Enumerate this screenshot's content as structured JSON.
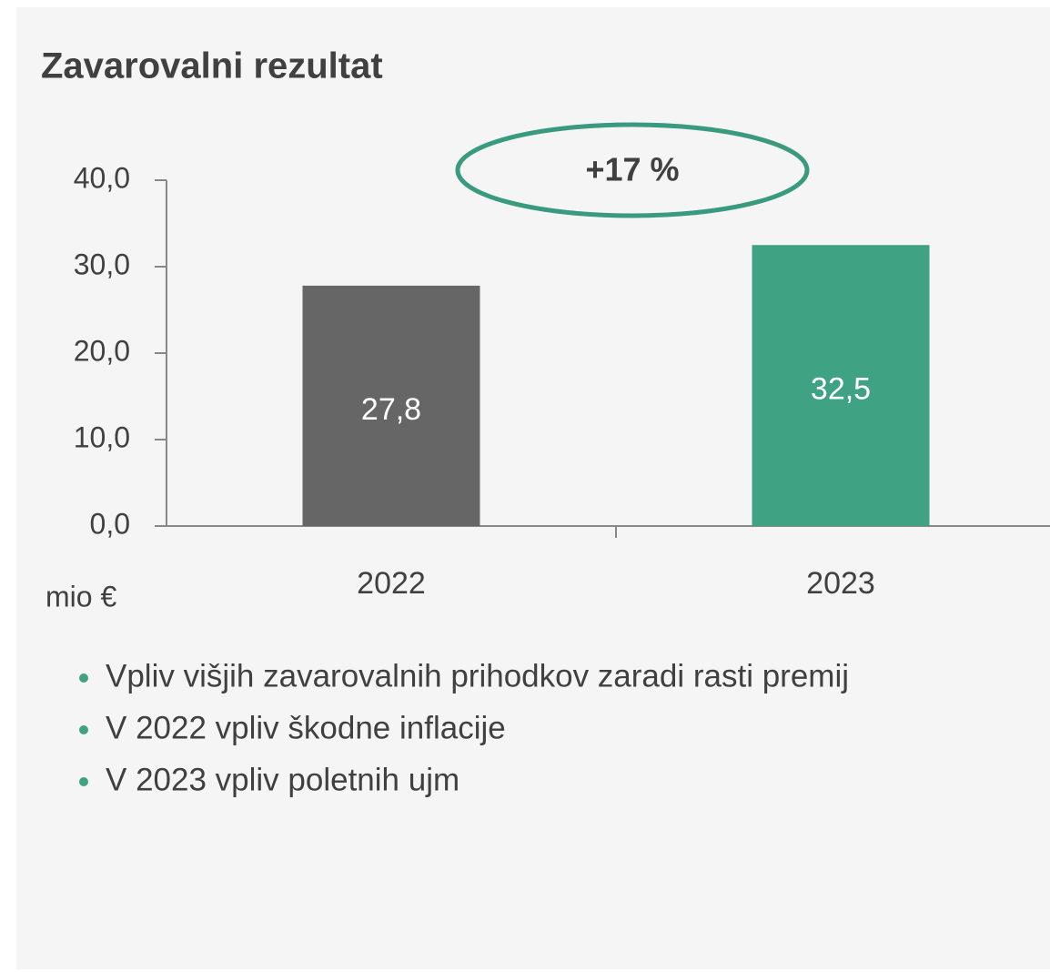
{
  "chart_data": {
    "type": "bar",
    "title": "Zavarovalni rezultat",
    "categories": [
      "2022",
      "2023"
    ],
    "values": [
      27.8,
      32.5
    ],
    "value_labels": [
      "27,8",
      "32,5"
    ],
    "colors": [
      "#666666",
      "#3fa283"
    ],
    "ylim": [
      0,
      40
    ],
    "yticks": [
      {
        "value": 0,
        "label": "0,0"
      },
      {
        "value": 10,
        "label": "10,0"
      },
      {
        "value": 20,
        "label": "20,0"
      },
      {
        "value": 30,
        "label": "30,0"
      },
      {
        "value": 40,
        "label": "40,0"
      }
    ],
    "y_unit": "mio €",
    "annotation": "+17 %",
    "notes": [
      "Vpliv višjih zavarovalnih prihodkov zaradi rasti premij",
      "V 2022 vpliv škodne inflacije",
      "V 2023 vpliv poletnih ujm"
    ]
  }
}
